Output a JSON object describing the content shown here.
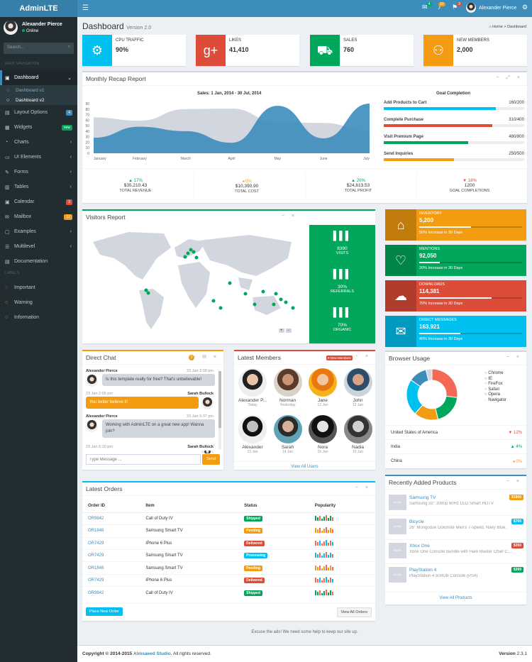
{
  "brand": "AdminLTE",
  "topbar": {
    "user": "Alexander Pierce",
    "badges": [
      "4",
      "10",
      "9"
    ]
  },
  "sidebar": {
    "user": "Alexander Pierce",
    "status": "Online",
    "search_placeholder": "Search...",
    "section_main": "MAIN NAVIGATION",
    "section_labels": "LABELS",
    "dashboard": "Dashboard",
    "sub": [
      "Dashboard v1",
      "Dashboard v2"
    ],
    "items": [
      {
        "label": "Layout Options",
        "pill": "4",
        "pill_color": "#3c8dbc"
      },
      {
        "label": "Widgets",
        "pill": "new",
        "pill_color": "#00a65a"
      },
      {
        "label": "Charts"
      },
      {
        "label": "UI Elements"
      },
      {
        "label": "Forms"
      },
      {
        "label": "Tables"
      },
      {
        "label": "Calendar",
        "pill": "3",
        "pill_color": "#dd4b39"
      },
      {
        "label": "Mailbox",
        "pill": "12",
        "pill_color": "#f39c12"
      },
      {
        "label": "Examples"
      },
      {
        "label": "Multilevel"
      },
      {
        "label": "Documentation"
      }
    ],
    "labels": [
      {
        "label": "Important",
        "color": "#dd4b39"
      },
      {
        "label": "Warning",
        "color": "#f39c12"
      },
      {
        "label": "Information",
        "color": "#00c0ef"
      }
    ]
  },
  "header": {
    "title": "Dashboard",
    "subtitle": "Version 2.0",
    "crumb_home": "Home",
    "crumb_current": "Dashboard"
  },
  "infoboxes": [
    {
      "title": "CPU TRAFFIC",
      "value": "90%",
      "color": "#00c0ef",
      "icon": "gear-icon"
    },
    {
      "title": "LIKES",
      "value": "41,410",
      "color": "#dd4b39",
      "icon": "google-plus-icon"
    },
    {
      "title": "SALES",
      "value": "760",
      "color": "#00a65a",
      "icon": "cart-icon"
    },
    {
      "title": "NEW MEMBERS",
      "value": "2,000",
      "color": "#f39c12",
      "icon": "users-icon"
    }
  ],
  "recap": {
    "title": "Monthly Recap Report",
    "chart_title": "Sales: 1 Jan, 2014 - 30 Jul, 2014",
    "goal_title": "Goal Completion",
    "goals": [
      {
        "label": "Add Products to Cart",
        "value": "160/200",
        "pct": 80,
        "color": "#00c0ef"
      },
      {
        "label": "Complete Purchase",
        "value": "310/400",
        "pct": 77.5,
        "color": "#dd4b39"
      },
      {
        "label": "Visit Premium Page",
        "value": "480/800",
        "pct": 60,
        "color": "#00a65a"
      },
      {
        "label": "Send Inquiries",
        "value": "250/500",
        "pct": 50,
        "color": "#f39c12"
      }
    ],
    "stats": [
      {
        "pct": "17%",
        "dir": "▲",
        "color": "#00a65a",
        "value": "$35,210.43",
        "label": "TOTAL REVENUE"
      },
      {
        "pct": "0%",
        "dir": "◂",
        "color": "#f39c12",
        "value": "$10,390.90",
        "label": "TOTAL COST"
      },
      {
        "pct": "20%",
        "dir": "▲",
        "color": "#00a65a",
        "value": "$24,813.53",
        "label": "TOTAL PROFIT"
      },
      {
        "pct": "18%",
        "dir": "▼",
        "color": "#dd4b39",
        "value": "1200",
        "label": "GOAL COMPLETIONS"
      }
    ]
  },
  "chart_data": {
    "type": "area",
    "x": [
      "January",
      "February",
      "March",
      "April",
      "May",
      "June",
      "July"
    ],
    "ylim": [
      0,
      90
    ],
    "yticks": [
      0,
      10,
      20,
      30,
      40,
      50,
      60,
      70,
      80,
      90
    ],
    "series": [
      {
        "values": [
          65,
          59,
          80,
          81,
          56,
          55,
          40
        ],
        "color": "#d2d6de"
      },
      {
        "values": [
          28,
          48,
          40,
          19,
          86,
          27,
          90
        ],
        "color": "#3c8dbc"
      }
    ]
  },
  "visitors": {
    "title": "Visitors Report",
    "stats": [
      {
        "value": "8390",
        "label": "VISITS"
      },
      {
        "value": "30%",
        "label": "REFERRALS"
      },
      {
        "value": "70%",
        "label": "ORGANIC"
      }
    ]
  },
  "smallboxes": [
    {
      "title": "INVENTORY",
      "value": "5,200",
      "desc": "50% Increase in 30 Days",
      "pct": 50,
      "color": "#f39c12",
      "icon": "tag-icon"
    },
    {
      "title": "MENTIONS",
      "value": "92,050",
      "desc": "20% Increase in 30 Days",
      "pct": 20,
      "color": "#00a65a",
      "icon": "heart-icon"
    },
    {
      "title": "DOWNLOADS",
      "value": "114,381",
      "desc": "70% Increase in 30 Days",
      "pct": 70,
      "color": "#dd4b39",
      "icon": "cloud-download-icon"
    },
    {
      "title": "DIRECT MESSAGES",
      "value": "163,921",
      "desc": "40% Increase in 30 Days",
      "pct": 40,
      "color": "#00c0ef",
      "icon": "comment-icon"
    }
  ],
  "chat": {
    "title": "Direct Chat",
    "badge": "3",
    "placeholder": "Type Message ...",
    "send": "Send",
    "msgs": [
      {
        "name": "Alexander Pierce",
        "time": "23 Jan 2:00 pm",
        "text": "Is this template really for free? That's unbelievable!"
      },
      {
        "name": "Sarah Bullock",
        "time": "23 Jan 2:05 pm",
        "text": "You better believe it!"
      },
      {
        "name": "Alexander Pierce",
        "time": "23 Jan 5:37 pm",
        "text": "Working with AdminLTE on a great new app! Wanna join?"
      },
      {
        "name": "Sarah Bullock",
        "time": "23 Jan 6:10 pm",
        "text": ""
      }
    ]
  },
  "members": {
    "title": "Latest Members",
    "badge": "8 New Members",
    "view_all": "View All Users",
    "list": [
      {
        "name": "Alexander P...",
        "date": "Today"
      },
      {
        "name": "Norman",
        "date": "Yesterday"
      },
      {
        "name": "Jane",
        "date": "12 Jan"
      },
      {
        "name": "John",
        "date": "12 Jan"
      },
      {
        "name": "Alexander",
        "date": "13 Jan"
      },
      {
        "name": "Sarah",
        "date": "14 Jan"
      },
      {
        "name": "Nora",
        "date": "15 Jan"
      },
      {
        "name": "Nadia",
        "date": "15 Jan"
      }
    ]
  },
  "browser": {
    "title": "Browser Usage",
    "legend": [
      "Chrome",
      "IE",
      "FireFox",
      "Safari",
      "Opera",
      "Navigator"
    ],
    "values": [
      700,
      500,
      400,
      600,
      300,
      100
    ],
    "colors": [
      "#f56954",
      "#00a65a",
      "#f39c12",
      "#00c0ef",
      "#3c8dbc",
      "#d2d6de"
    ],
    "rows": [
      {
        "label": "United States of America",
        "pct": "12%",
        "dir": "▼",
        "color": "#dd4b39"
      },
      {
        "label": "India",
        "pct": "4%",
        "dir": "▲",
        "color": "#00a65a"
      },
      {
        "label": "China",
        "pct": "0%",
        "dir": "◂",
        "color": "#f39c12"
      }
    ]
  },
  "orders": {
    "title": "Latest Orders",
    "cols": [
      "Order ID",
      "Item",
      "Status",
      "Popularity"
    ],
    "rows": [
      {
        "id": "OR9842",
        "item": "Call of Duty IV",
        "status": "Shipped",
        "color": "#00a65a"
      },
      {
        "id": "OR1848",
        "item": "Samsung Smart TV",
        "status": "Pending",
        "color": "#f39c12"
      },
      {
        "id": "OR7429",
        "item": "iPhone 6 Plus",
        "status": "Delivered",
        "color": "#dd4b39"
      },
      {
        "id": "OR7429",
        "item": "Samsung Smart TV",
        "status": "Processing",
        "color": "#00c0ef"
      },
      {
        "id": "OR1848",
        "item": "Samsung Smart TV",
        "status": "Pending",
        "color": "#f39c12"
      },
      {
        "id": "OR7429",
        "item": "iPhone 6 Plus",
        "status": "Delivered",
        "color": "#dd4b39"
      },
      {
        "id": "OR9842",
        "item": "Call of Duty IV",
        "status": "Shipped",
        "color": "#00a65a"
      }
    ],
    "place": "Place New Order",
    "view_all": "View All Orders"
  },
  "products": {
    "title": "Recently Added Products",
    "view_all": "View All Products",
    "img": "50x50",
    "list": [
      {
        "name": "Samsung TV",
        "desc": "Samsung 32\" 1080p 60Hz LED Smart HDTV.",
        "price": "$1800",
        "color": "#f39c12"
      },
      {
        "name": "Bicycle",
        "desc": "26\" Mongoose Dolomite Men's 7-speed, Navy Blue.",
        "price": "$700",
        "color": "#00c0ef"
      },
      {
        "name": "Xbox One",
        "desc": "Xbox One Console Bundle with Halo Master Chief Collec...",
        "price": "$350",
        "color": "#dd4b39"
      },
      {
        "name": "PlayStation 4",
        "desc": "PlayStation 4 500GB Console (PS4)",
        "price": "$399",
        "color": "#00a65a"
      }
    ]
  },
  "ads": "Excuse the ads! We need some help to keep our site up.",
  "footer": {
    "copy": "Copyright © 2014-2015",
    "company": "Almsaeed Studio.",
    "rights": "All rights reserved.",
    "version_label": "Version",
    "version": "2.3.1"
  }
}
